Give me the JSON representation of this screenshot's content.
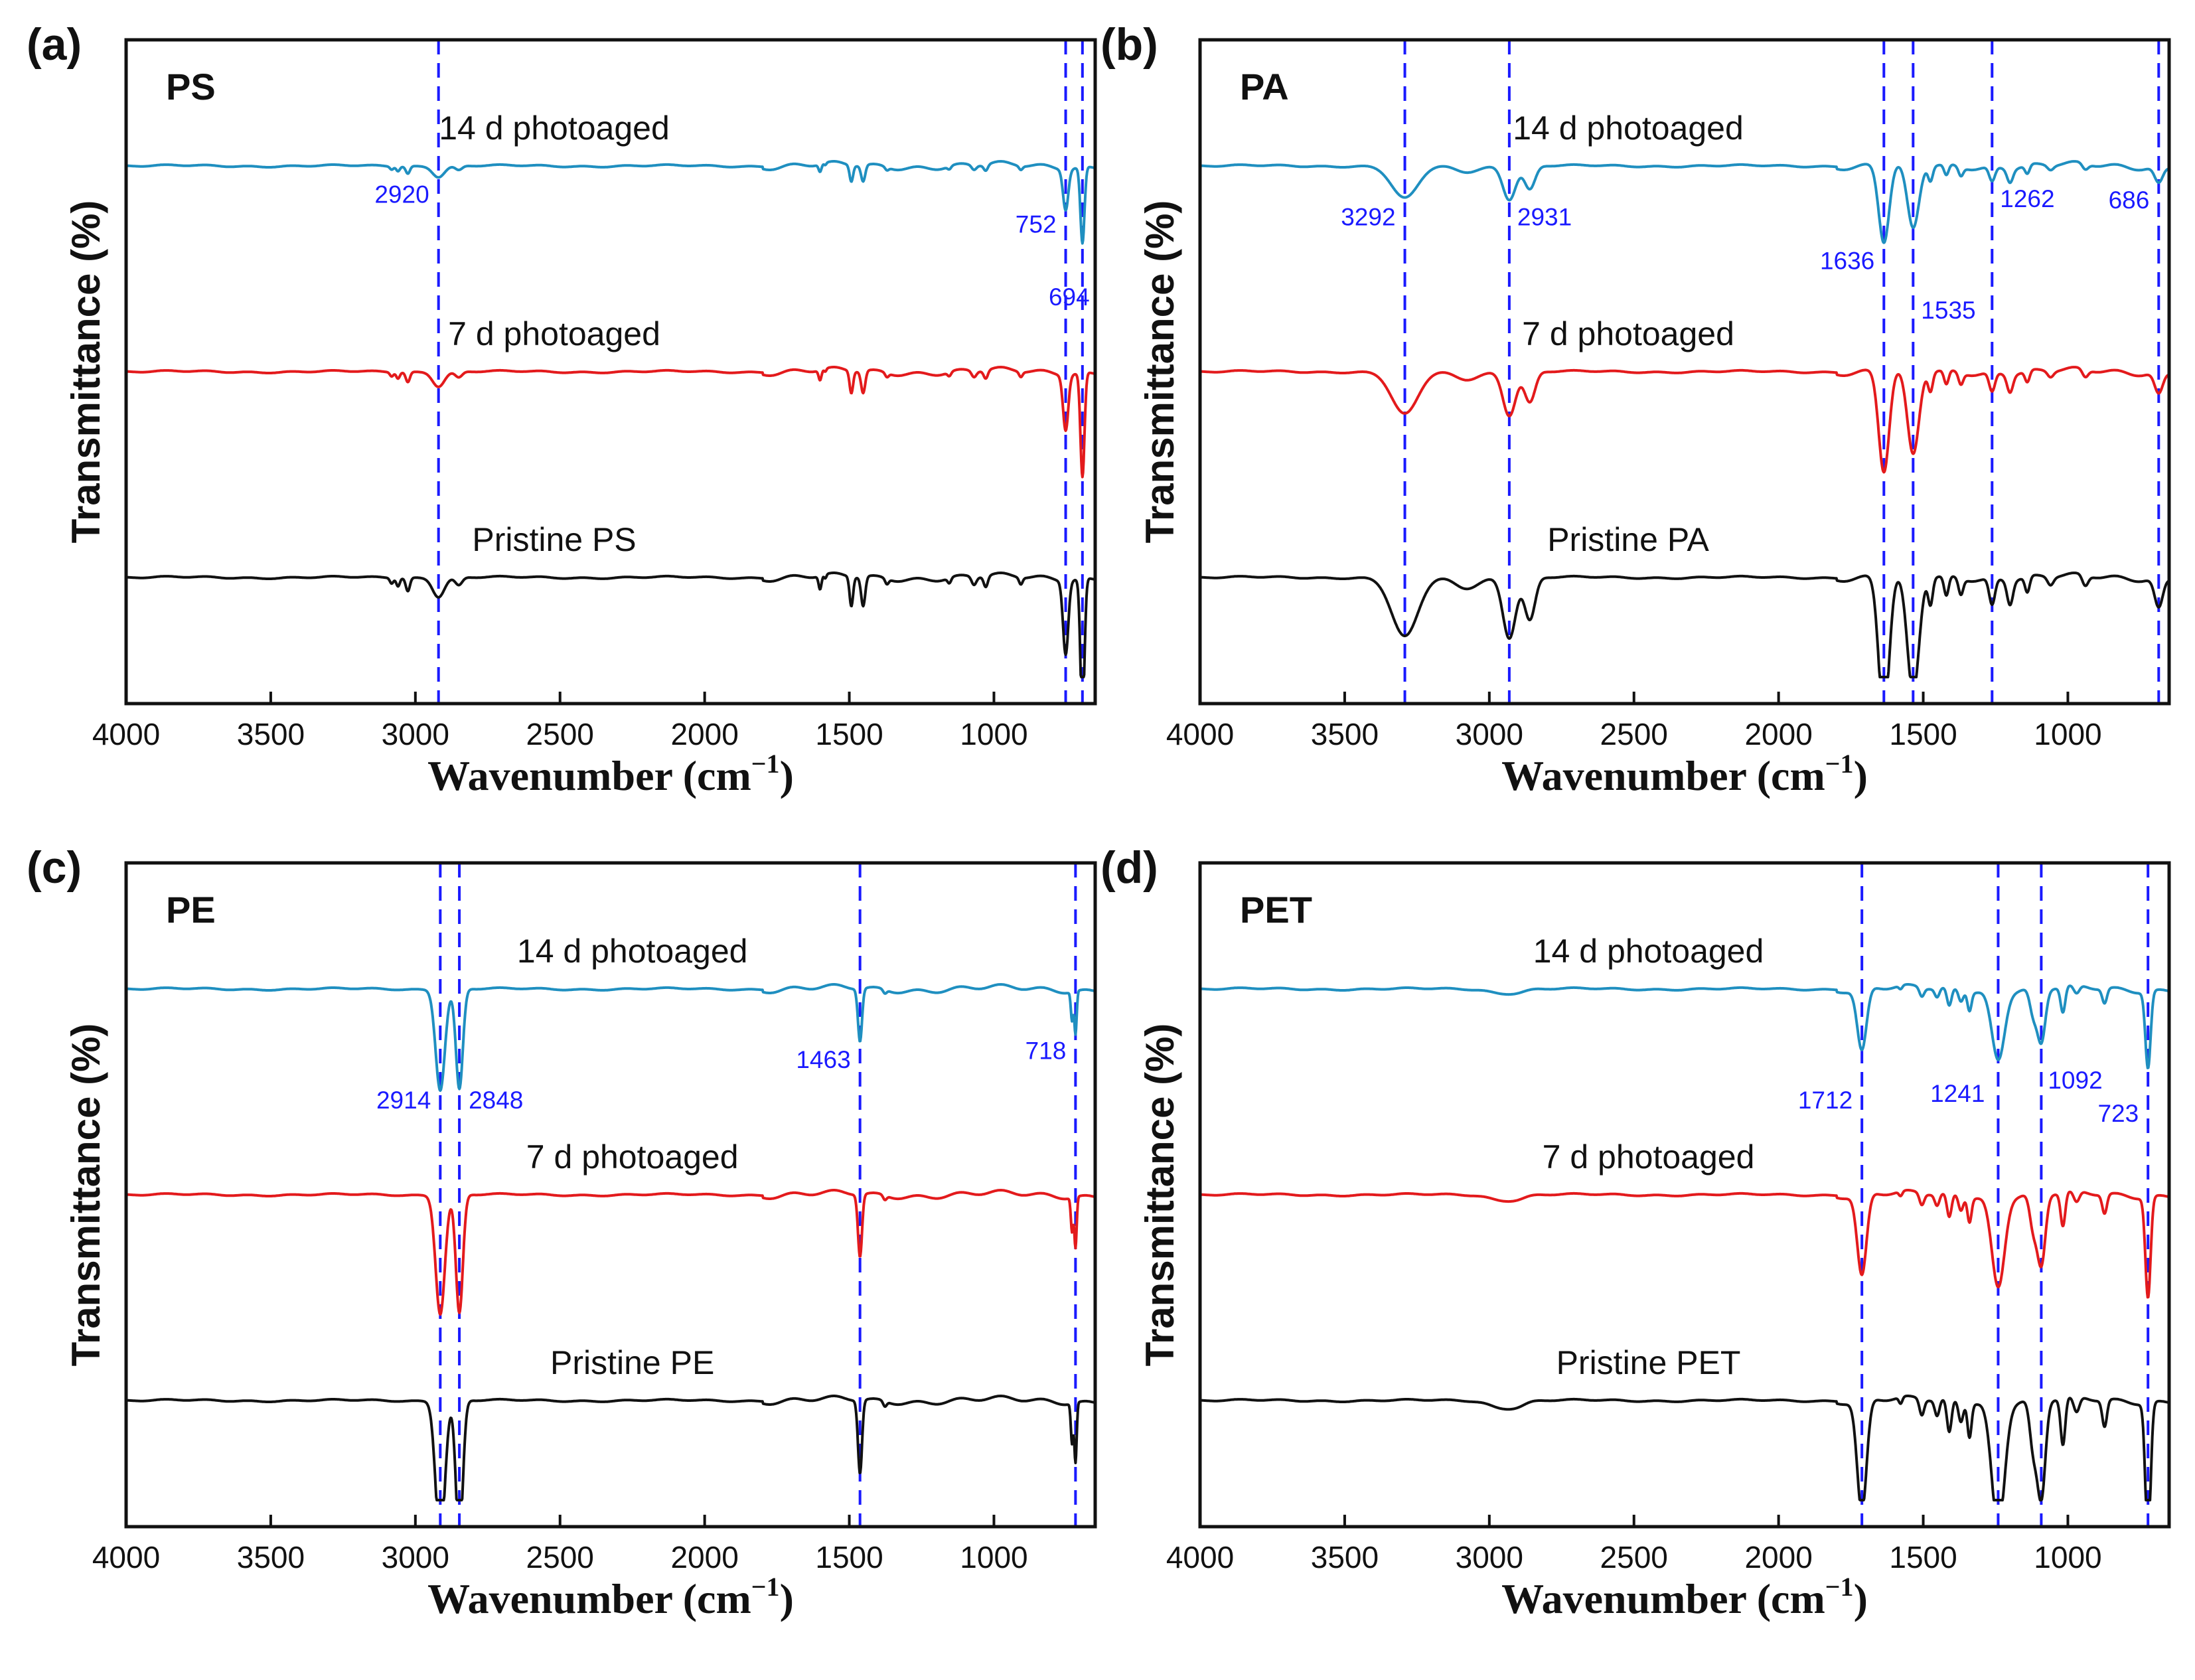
{
  "colors": {
    "c14": "#1f8fc0",
    "c7": "#e31a1c",
    "c0": "#111111",
    "vline": "#1a1aff",
    "axis": "#111111"
  },
  "chart_data": [
    {
      "type": "line",
      "panel": "(a)",
      "title": "PS",
      "xlabel": "Wavenumber (cm",
      "xlabel_sup": "−1",
      "xlabel_end": ")",
      "ylabel": "Transmittance (%)",
      "xlim": [
        4000,
        650
      ],
      "x_ticks": [
        4000,
        3500,
        3000,
        2500,
        2000,
        1500,
        1000
      ],
      "series": [
        {
          "name": "14 d photoaged",
          "color_key": "c14",
          "offset": 2.0,
          "scale": 0.55
        },
        {
          "name": "7 d photoaged",
          "color_key": "c7",
          "offset": 1.0,
          "scale": 0.75
        },
        {
          "name": "Pristine PS",
          "color_key": "c0",
          "offset": 0.0,
          "scale": 1.0
        }
      ],
      "peaks": [
        {
          "x": 3082,
          "depth": 0.04,
          "w": 6
        },
        {
          "x": 3060,
          "depth": 0.06,
          "w": 6
        },
        {
          "x": 3026,
          "depth": 0.1,
          "w": 7
        },
        {
          "x": 2920,
          "depth": 0.14,
          "w": 20
        },
        {
          "x": 2850,
          "depth": 0.06,
          "w": 12
        },
        {
          "x": 1601,
          "depth": 0.1,
          "w": 5
        },
        {
          "x": 1583,
          "depth": 0.03,
          "w": 4
        },
        {
          "x": 1493,
          "depth": 0.22,
          "w": 6
        },
        {
          "x": 1452,
          "depth": 0.22,
          "w": 7
        },
        {
          "x": 1370,
          "depth": 0.04,
          "w": 6
        },
        {
          "x": 1154,
          "depth": 0.04,
          "w": 6
        },
        {
          "x": 1069,
          "depth": 0.06,
          "w": 8
        },
        {
          "x": 1028,
          "depth": 0.08,
          "w": 7
        },
        {
          "x": 907,
          "depth": 0.05,
          "w": 6
        },
        {
          "x": 752,
          "depth": 0.55,
          "w": 9
        },
        {
          "x": 694,
          "depth": 1.05,
          "w": 7
        }
      ],
      "annotations": [
        {
          "text": "2920",
          "x": 2920,
          "series": 0
        },
        {
          "text": "752",
          "x": 752,
          "series": 0
        },
        {
          "text": "694",
          "x": 694,
          "series": 1
        }
      ],
      "vlines": [
        2920,
        752,
        694
      ]
    },
    {
      "type": "line",
      "panel": "(b)",
      "title": "PA",
      "xlabel": "Wavenumber (cm",
      "xlabel_sup": "−1",
      "xlabel_end": ")",
      "ylabel": "Transmittance (%)",
      "xlim": [
        4000,
        650
      ],
      "x_ticks": [
        4000,
        3500,
        3000,
        2500,
        2000,
        1500,
        1000
      ],
      "series": [
        {
          "name": "14 d photoaged",
          "color_key": "c14",
          "offset": 2.0,
          "scale": 0.55
        },
        {
          "name": "7 d photoaged",
          "color_key": "c7",
          "offset": 1.0,
          "scale": 0.72
        },
        {
          "name": "Pristine PA",
          "color_key": "c0",
          "offset": 0.0,
          "scale": 1.0
        }
      ],
      "peaks": [
        {
          "x": 3292,
          "depth": 0.45,
          "w": 45
        },
        {
          "x": 3080,
          "depth": 0.08,
          "w": 40
        },
        {
          "x": 2931,
          "depth": 0.45,
          "w": 22
        },
        {
          "x": 2860,
          "depth": 0.32,
          "w": 18
        },
        {
          "x": 1636,
          "depth": 1.05,
          "w": 18
        },
        {
          "x": 1535,
          "depth": 0.9,
          "w": 20
        },
        {
          "x": 1475,
          "depth": 0.2,
          "w": 8
        },
        {
          "x": 1420,
          "depth": 0.15,
          "w": 8
        },
        {
          "x": 1370,
          "depth": 0.12,
          "w": 8
        },
        {
          "x": 1262,
          "depth": 0.2,
          "w": 10
        },
        {
          "x": 1200,
          "depth": 0.18,
          "w": 10
        },
        {
          "x": 1140,
          "depth": 0.12,
          "w": 8
        },
        {
          "x": 1060,
          "depth": 0.06,
          "w": 10
        },
        {
          "x": 940,
          "depth": 0.08,
          "w": 10
        },
        {
          "x": 686,
          "depth": 0.22,
          "w": 14
        }
      ],
      "annotations": [
        {
          "text": "3292",
          "x": 3292,
          "series": 0
        },
        {
          "text": "2931",
          "x": 2931,
          "series": 0
        },
        {
          "text": "1636",
          "x": 1636,
          "series": 0
        },
        {
          "text": "1535",
          "x": 1535,
          "series": 0
        },
        {
          "text": "1262",
          "x": 1262,
          "series": 0
        },
        {
          "text": "686",
          "x": 686,
          "series": 0
        }
      ],
      "vlines": [
        3292,
        2931,
        1636,
        1535,
        1262,
        686
      ]
    },
    {
      "type": "line",
      "panel": "(c)",
      "title": "PE",
      "xlabel": "Wavenumber (cm",
      "xlabel_sup": "−1",
      "xlabel_end": ")",
      "ylabel": "Transmittance (%)",
      "xlim": [
        4000,
        650
      ],
      "x_ticks": [
        4000,
        3500,
        3000,
        2500,
        2000,
        1500,
        1000
      ],
      "series": [
        {
          "name": "14 d photoaged",
          "color_key": "c14",
          "offset": 2.0,
          "scale": 0.72
        },
        {
          "name": "7 d photoaged",
          "color_key": "c7",
          "offset": 1.0,
          "scale": 0.85
        },
        {
          "name": "Pristine PE",
          "color_key": "c0",
          "offset": 0.0,
          "scale": 1.0
        }
      ],
      "peaks": [
        {
          "x": 2914,
          "depth": 1.05,
          "w": 16
        },
        {
          "x": 2848,
          "depth": 1.05,
          "w": 12
        },
        {
          "x": 1463,
          "depth": 0.55,
          "w": 7
        },
        {
          "x": 1377,
          "depth": 0.04,
          "w": 6
        },
        {
          "x": 730,
          "depth": 0.3,
          "w": 4
        },
        {
          "x": 718,
          "depth": 0.45,
          "w": 4
        }
      ],
      "annotations": [
        {
          "text": "2914",
          "x": 2914,
          "series": 0
        },
        {
          "text": "2848",
          "x": 2848,
          "series": 0
        },
        {
          "text": "1463",
          "x": 1463,
          "series": 0
        },
        {
          "text": "718",
          "x": 718,
          "series": 0
        }
      ],
      "vlines": [
        2914,
        2848,
        1463,
        718
      ]
    },
    {
      "type": "line",
      "panel": "(d)",
      "title": "PET",
      "xlabel": "Wavenumber (cm",
      "xlabel_sup": "−1",
      "xlabel_end": ")",
      "ylabel": "Transmittance (%)",
      "xlim": [
        4000,
        650
      ],
      "x_ticks": [
        4000,
        3500,
        3000,
        2500,
        2000,
        1500,
        1000
      ],
      "series": [
        {
          "name": "14 d photoaged",
          "color_key": "c14",
          "offset": 2.0,
          "scale": 0.55
        },
        {
          "name": "7 d photoaged",
          "color_key": "c7",
          "offset": 1.0,
          "scale": 0.72
        },
        {
          "name": "Pristine PET",
          "color_key": "c0",
          "offset": 0.0,
          "scale": 1.0
        }
      ],
      "peaks": [
        {
          "x": 2960,
          "depth": 0.05,
          "w": 40
        },
        {
          "x": 2900,
          "depth": 0.03,
          "w": 30
        },
        {
          "x": 1712,
          "depth": 0.85,
          "w": 16
        },
        {
          "x": 1578,
          "depth": 0.05,
          "w": 6
        },
        {
          "x": 1505,
          "depth": 0.12,
          "w": 8
        },
        {
          "x": 1452,
          "depth": 0.12,
          "w": 8
        },
        {
          "x": 1410,
          "depth": 0.25,
          "w": 8
        },
        {
          "x": 1370,
          "depth": 0.15,
          "w": 8
        },
        {
          "x": 1340,
          "depth": 0.25,
          "w": 7
        },
        {
          "x": 1241,
          "depth": 0.95,
          "w": 22
        },
        {
          "x": 1120,
          "depth": 0.35,
          "w": 12
        },
        {
          "x": 1092,
          "depth": 0.75,
          "w": 14
        },
        {
          "x": 1017,
          "depth": 0.35,
          "w": 8
        },
        {
          "x": 970,
          "depth": 0.12,
          "w": 10
        },
        {
          "x": 873,
          "depth": 0.2,
          "w": 8
        },
        {
          "x": 723,
          "depth": 1.05,
          "w": 9
        }
      ],
      "annotations": [
        {
          "text": "1712",
          "x": 1712,
          "series": 0
        },
        {
          "text": "1241",
          "x": 1241,
          "series": 0
        },
        {
          "text": "1092",
          "x": 1092,
          "series": 0
        },
        {
          "text": "723",
          "x": 723,
          "series": 0
        }
      ],
      "vlines": [
        1712,
        1241,
        1092,
        723
      ]
    }
  ]
}
